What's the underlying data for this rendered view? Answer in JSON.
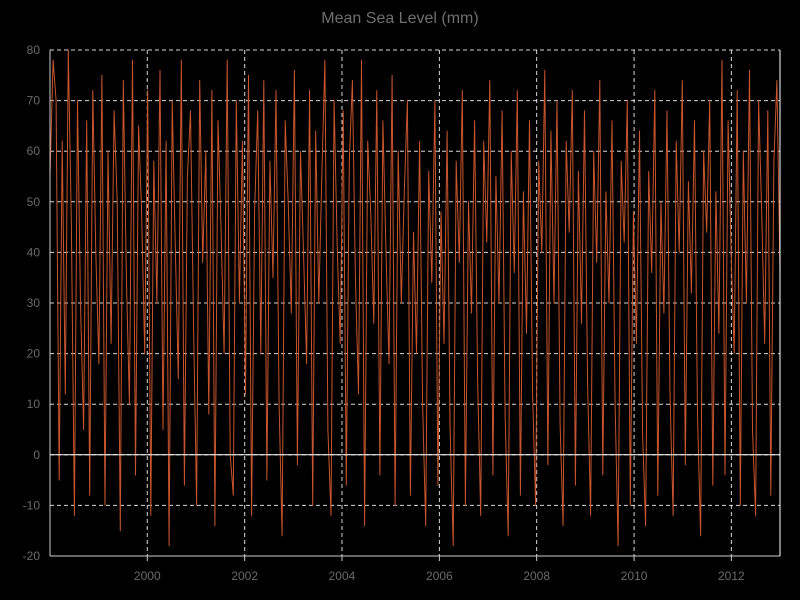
{
  "chart_data": {
    "type": "line",
    "title": "Mean Sea Level (mm)",
    "xlabel": "",
    "ylabel": "",
    "x_range": [
      "1998-01-01",
      "2012-12-31"
    ],
    "ylim": [
      -20,
      80
    ],
    "y_ticks": [
      -20,
      -10,
      0,
      10,
      20,
      30,
      40,
      50,
      60,
      70,
      80
    ],
    "x_ticks": [
      "2000",
      "2002",
      "2004",
      "2006",
      "2008",
      "2010",
      "2012"
    ],
    "grid": true,
    "baseline": 0,
    "colors": {
      "series": "#c8552e",
      "grid": "#ffffff",
      "axis": "#cccccc",
      "background": "#000000",
      "text": "#6f6f6f"
    },
    "series": [
      {
        "x_start": "1998-01-01",
        "x_end": "2012-12-31",
        "values": [
          55,
          78,
          70,
          -5,
          62,
          12,
          80,
          45,
          -12,
          70,
          30,
          5,
          66,
          -8,
          72,
          40,
          18,
          75,
          -10,
          60,
          22,
          68,
          50,
          -15,
          74,
          35,
          10,
          78,
          -4,
          65,
          48,
          20,
          72,
          -12,
          58,
          30,
          76,
          5,
          62,
          -18,
          70,
          42,
          15,
          78,
          -6,
          55,
          68,
          25,
          -10,
          74,
          38,
          60,
          8,
          72,
          -14,
          66,
          45,
          20,
          78,
          0,
          -8,
          70,
          30,
          62,
          12,
          75,
          -12,
          48,
          68,
          20,
          74,
          -5,
          58,
          35,
          72,
          10,
          -16,
          66,
          50,
          28,
          76,
          -2,
          60,
          40,
          18,
          72,
          -10,
          64,
          30,
          55,
          78,
          5,
          -12,
          70,
          42,
          22,
          68,
          -6,
          58,
          74,
          35,
          12,
          78,
          -14,
          62,
          48,
          26,
          72,
          -4,
          66,
          40,
          18,
          75,
          -10,
          60,
          30,
          52,
          70,
          -8,
          44,
          20,
          62,
          10,
          -14,
          56,
          34,
          70,
          -6,
          48,
          22,
          64,
          5,
          -18,
          58,
          38,
          72,
          -10,
          50,
          28,
          66,
          15,
          -12,
          62,
          42,
          74,
          -4,
          55,
          30,
          68,
          8,
          -16,
          60,
          36,
          72,
          -8,
          52,
          24,
          66,
          12,
          -10,
          58,
          40,
          76,
          -2,
          64,
          30,
          70,
          6,
          -14,
          62,
          44,
          72,
          -6,
          56,
          26,
          68,
          14,
          -12,
          60,
          38,
          74,
          -4,
          52,
          30,
          66,
          10,
          -18,
          58,
          42,
          70,
          -10,
          48,
          22,
          64,
          4,
          -14,
          56,
          36,
          72,
          -8,
          50,
          28,
          68,
          12,
          -12,
          62,
          40,
          74,
          -2,
          54,
          32,
          66,
          8,
          -16,
          60,
          44,
          70,
          -6,
          52,
          24,
          78,
          -4,
          66,
          40,
          20,
          72,
          -10,
          60,
          30,
          76,
          5,
          -12,
          70,
          48,
          22,
          68,
          -8,
          58,
          74,
          36
        ],
        "color": "#c8552e"
      }
    ]
  }
}
